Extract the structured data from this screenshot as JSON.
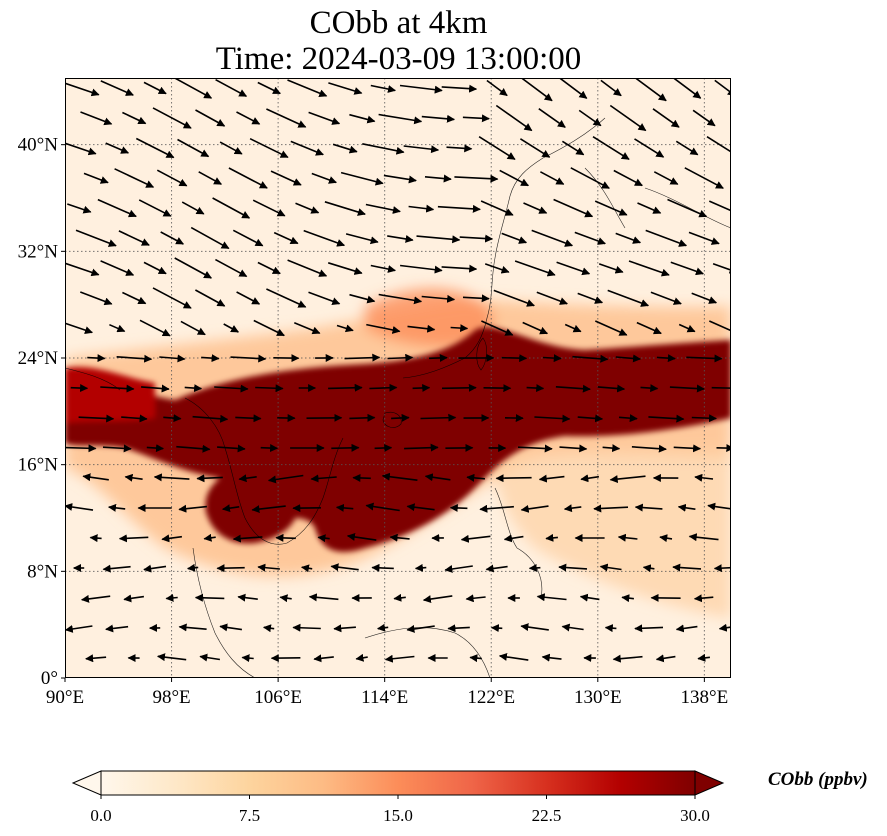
{
  "title": {
    "line1": "CObb at 4km",
    "line2": "Time: 2024-03-09 13:00:00"
  },
  "map": {
    "variable": "CObb",
    "level": "4km",
    "extent": {
      "lon": [
        90,
        140
      ],
      "lat": [
        0,
        45
      ]
    },
    "gridlines": true,
    "lon_ticks": [
      {
        "value": 90,
        "label": "90°E"
      },
      {
        "value": 98,
        "label": "98°E"
      },
      {
        "value": 106,
        "label": "106°E"
      },
      {
        "value": 114,
        "label": "114°E"
      },
      {
        "value": 122,
        "label": "122°E"
      },
      {
        "value": 130,
        "label": "130°E"
      },
      {
        "value": 138,
        "label": "138°E"
      }
    ],
    "lat_ticks": [
      {
        "value": 0,
        "label": "0°"
      },
      {
        "value": 8,
        "label": "8°N"
      },
      {
        "value": 16,
        "label": "16°N"
      },
      {
        "value": 24,
        "label": "24°N"
      },
      {
        "value": 32,
        "label": "32°N"
      },
      {
        "value": 40,
        "label": "40°N"
      }
    ],
    "wind_vectors": true
  },
  "colorbar": {
    "label": "CObb (ppbv)",
    "range": [
      0,
      30
    ],
    "extend": "both",
    "colormap": [
      "#fff7ec",
      "#fee8c8",
      "#fdd49e",
      "#fdbb84",
      "#fc8d59",
      "#ef6548",
      "#d7301f",
      "#b30000",
      "#7f0000"
    ],
    "ticks": [
      {
        "value": 0,
        "label": "0.0"
      },
      {
        "value": 7.5,
        "label": "7.5"
      },
      {
        "value": 15,
        "label": "15.0"
      },
      {
        "value": 22.5,
        "label": "22.5"
      },
      {
        "value": 30,
        "label": "30.0"
      }
    ]
  }
}
